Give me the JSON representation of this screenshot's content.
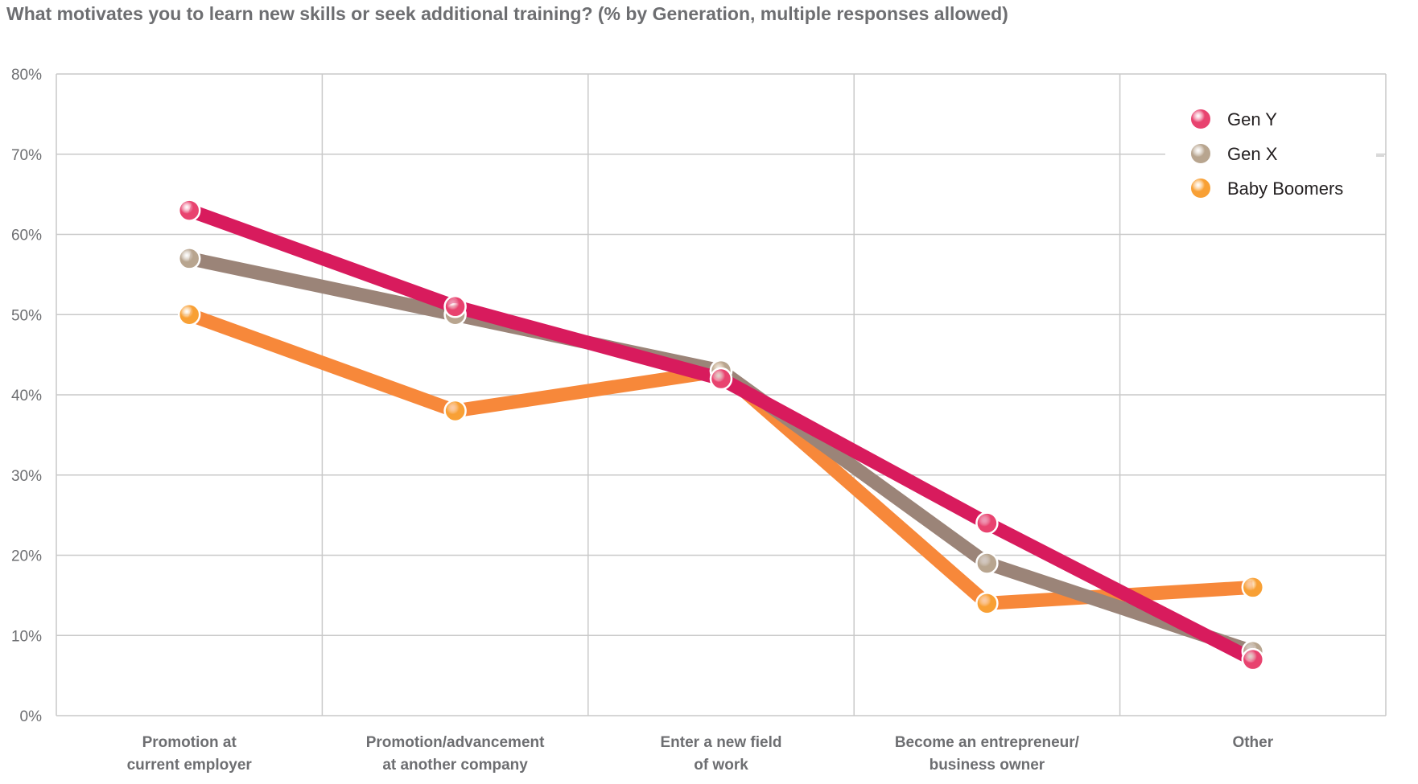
{
  "chart_data": {
    "type": "line",
    "title": "What motivates you to learn new skills or seek additional training? (% by Generation, multiple responses allowed)",
    "categories": [
      [
        "Promotion at",
        "current employer"
      ],
      [
        "Promotion/advancement",
        "at another company"
      ],
      [
        "Enter a new field",
        "of work"
      ],
      [
        "Become an entrepreneur/",
        "business owner"
      ],
      [
        "Other"
      ]
    ],
    "ylim": [
      0,
      80
    ],
    "yticks": [
      "0%",
      "10%",
      "20%",
      "30%",
      "40%",
      "50%",
      "60%",
      "70%",
      "80%"
    ],
    "ytick_values": [
      0,
      10,
      20,
      30,
      40,
      50,
      60,
      70,
      80
    ],
    "grid": true,
    "legend_position": "top-right",
    "series": [
      {
        "name": "Baby Boomers",
        "color": "#f7883a",
        "marker_color": "#f8a035",
        "values": [
          50,
          38,
          43,
          14,
          16
        ]
      },
      {
        "name": "Gen X",
        "color": "#9b8478",
        "marker_color": "#b8a58f",
        "values": [
          57,
          50,
          43,
          19,
          8
        ]
      },
      {
        "name": "Gen Y",
        "color": "#d81b5d",
        "marker_color": "#e8436f",
        "values": [
          63,
          51,
          42,
          24,
          7
        ]
      }
    ],
    "legend_order": [
      "Gen Y",
      "Gen X",
      "Baby Boomers"
    ]
  }
}
